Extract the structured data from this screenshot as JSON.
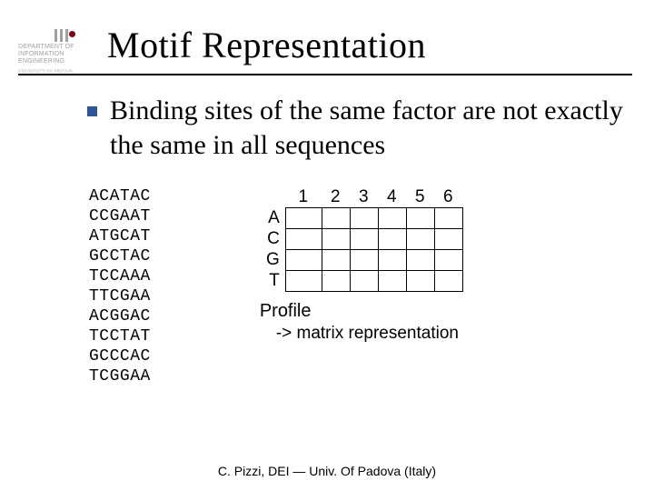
{
  "logo": {
    "line1": "DEPARTMENT OF",
    "line2": "INFORMATION",
    "line3": "ENGINEERING",
    "sub": "UNIVERSITY OF PADOVA"
  },
  "title": "Motif Representation",
  "bullet_text": "Binding sites of the same factor are not exactly the same in all sequences",
  "sequences": [
    "ACATAC",
    "CCGAAT",
    "ATGCAT",
    "GCCTAC",
    "TCCAAA",
    "TTCGAA",
    "ACGGAC",
    "TCCTAT",
    "GCCCAC",
    "TCGGAA"
  ],
  "profile": {
    "columns": [
      "1",
      "2",
      "3",
      "4",
      "5",
      "6"
    ],
    "rows": [
      "A",
      "C",
      "G",
      "T"
    ],
    "label": "Profile",
    "sublabel": "-> matrix representation"
  },
  "footer": "C. Pizzi, DEI — Univ. Of Padova (Italy)",
  "colors": {
    "bullet": "#2f5597",
    "logo_dot": "#7a0018"
  }
}
